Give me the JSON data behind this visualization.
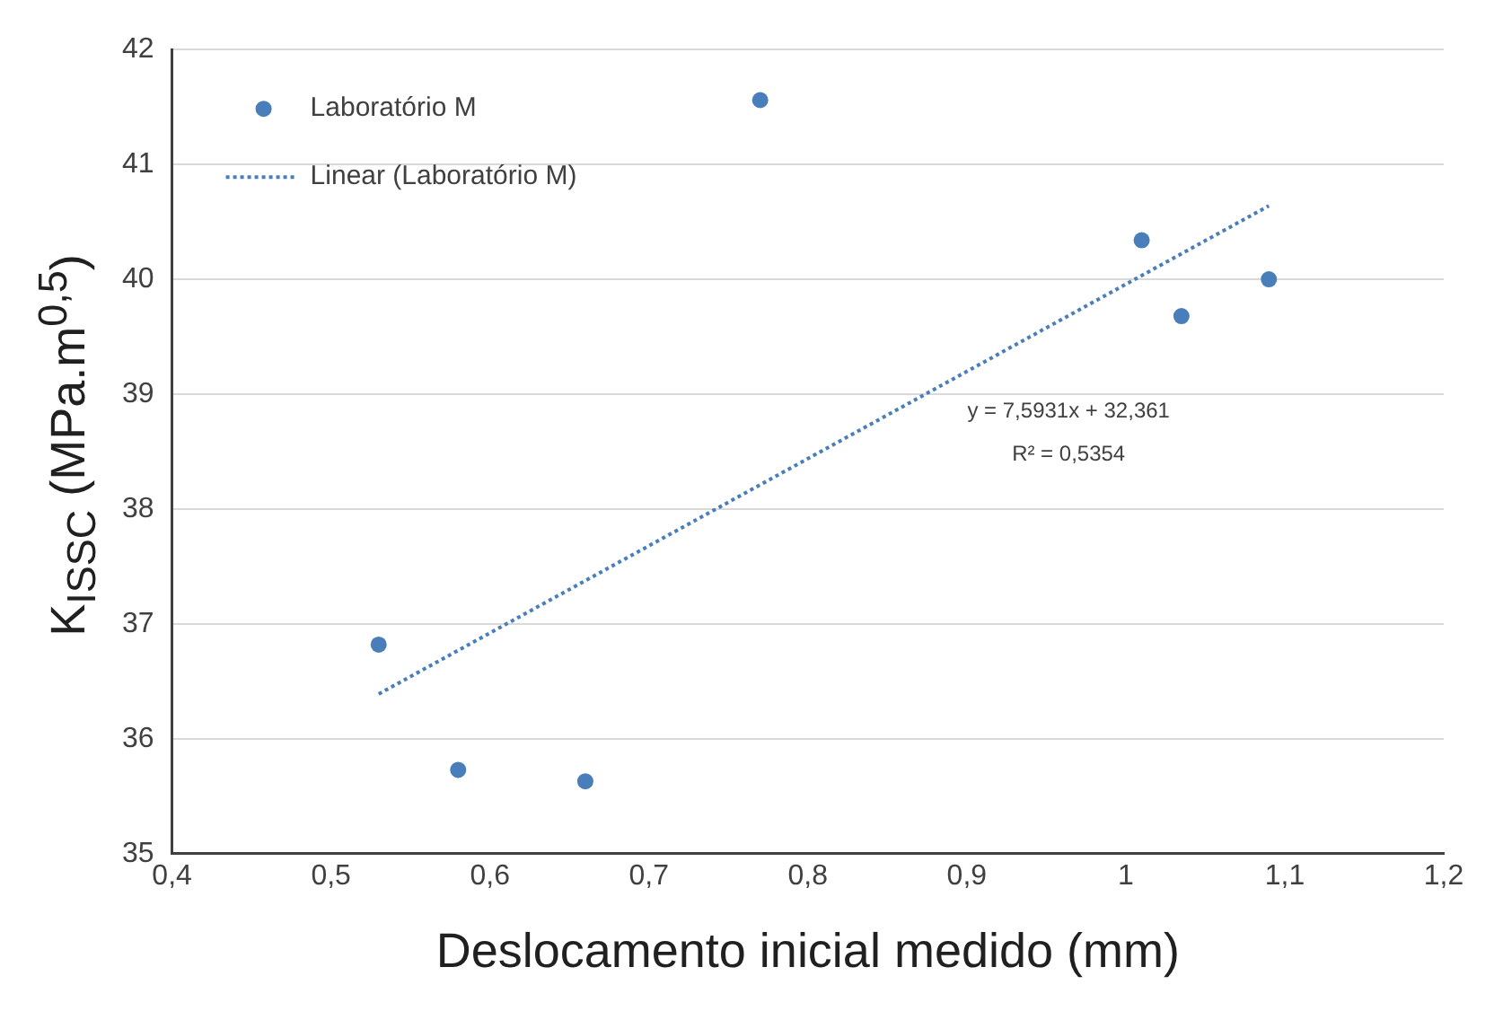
{
  "chart_data": {
    "type": "scatter",
    "xlabel": "Deslocamento inicial medido (mm)",
    "ylabel": "K$_{ISSC}$ (MPa.m$^{0,5}$)",
    "series": [
      {
        "name": "Laboratório M",
        "color": "#4a7ebb",
        "x": [
          0.53,
          0.58,
          0.66,
          0.77,
          1.01,
          1.035,
          1.09
        ],
        "values": [
          36.82,
          35.73,
          35.63,
          41.56,
          40.34,
          39.68,
          40.0
        ]
      },
      {
        "name": "Linear (Laboratório M)",
        "type": "line",
        "color": "#4a7ebb",
        "line_style": "dotted",
        "marker": "none",
        "x": [
          0.53,
          1.09
        ],
        "values": [
          36.39,
          40.64
        ]
      }
    ],
    "xlim": [
      0.4,
      1.2
    ],
    "xticks": [
      {
        "value": 0.4,
        "label": "0,4"
      },
      {
        "value": 0.5,
        "label": "0,5"
      },
      {
        "value": 0.6,
        "label": "0,6"
      },
      {
        "value": 0.7,
        "label": "0,7"
      },
      {
        "value": 0.8,
        "label": "0,8"
      },
      {
        "value": 0.9,
        "label": "0,9"
      },
      {
        "value": 1,
        "label": "1"
      },
      {
        "value": 1.1,
        "label": "1,1"
      },
      {
        "value": 1.2,
        "label": "1,2"
      }
    ],
    "ylim": [
      35,
      42
    ],
    "yticks": [
      35,
      36,
      37,
      38,
      39,
      40,
      41,
      42
    ],
    "grid": "y",
    "legend": "top left",
    "marker": "circle",
    "annotations": [
      "y = 7,5931x + 32,361",
      "R² = 0,5354"
    ]
  }
}
